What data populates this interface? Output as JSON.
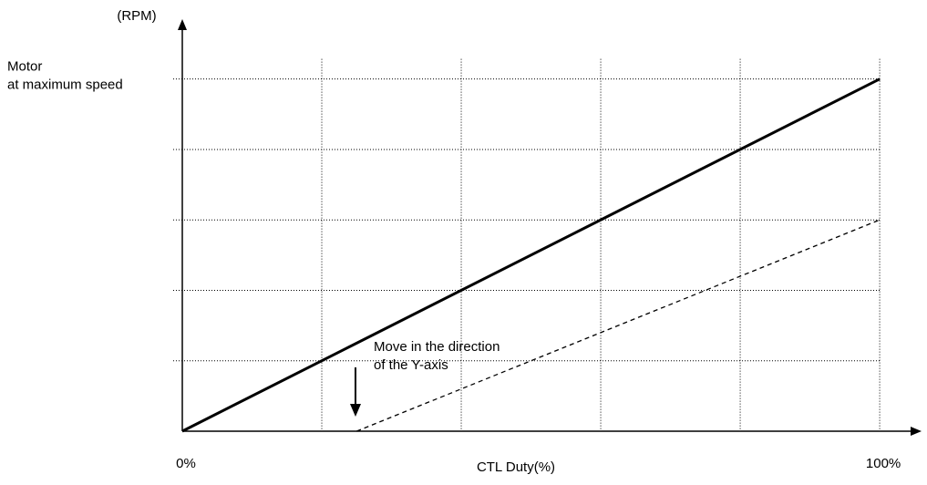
{
  "chart_data": {
    "type": "line",
    "y_label": "(RPM)",
    "x_label": "CTL Duty(%)",
    "xlim": [
      0,
      106
    ],
    "ylim": [
      0,
      117
    ],
    "xticks": [
      {
        "value": 0,
        "label": "0%"
      },
      {
        "value": 100,
        "label": "100%"
      }
    ],
    "yticks": [
      {
        "value": 100,
        "label": [
          "Motor",
          "at maximum speed"
        ]
      }
    ],
    "xgrid": [
      20,
      40,
      60,
      80,
      100
    ],
    "ygrid": [
      20,
      40,
      60,
      80,
      100
    ],
    "annotation": [
      "Move in the direction",
      "of the Y-axis"
    ],
    "series": [
      {
        "color": "#000000",
        "style": "solid",
        "x": [
          0,
          100
        ],
        "values": [
          0,
          100
        ]
      },
      {
        "color": "#000000",
        "style": "dashed",
        "x": [
          25,
          100
        ],
        "values": [
          0,
          60
        ]
      }
    ]
  }
}
